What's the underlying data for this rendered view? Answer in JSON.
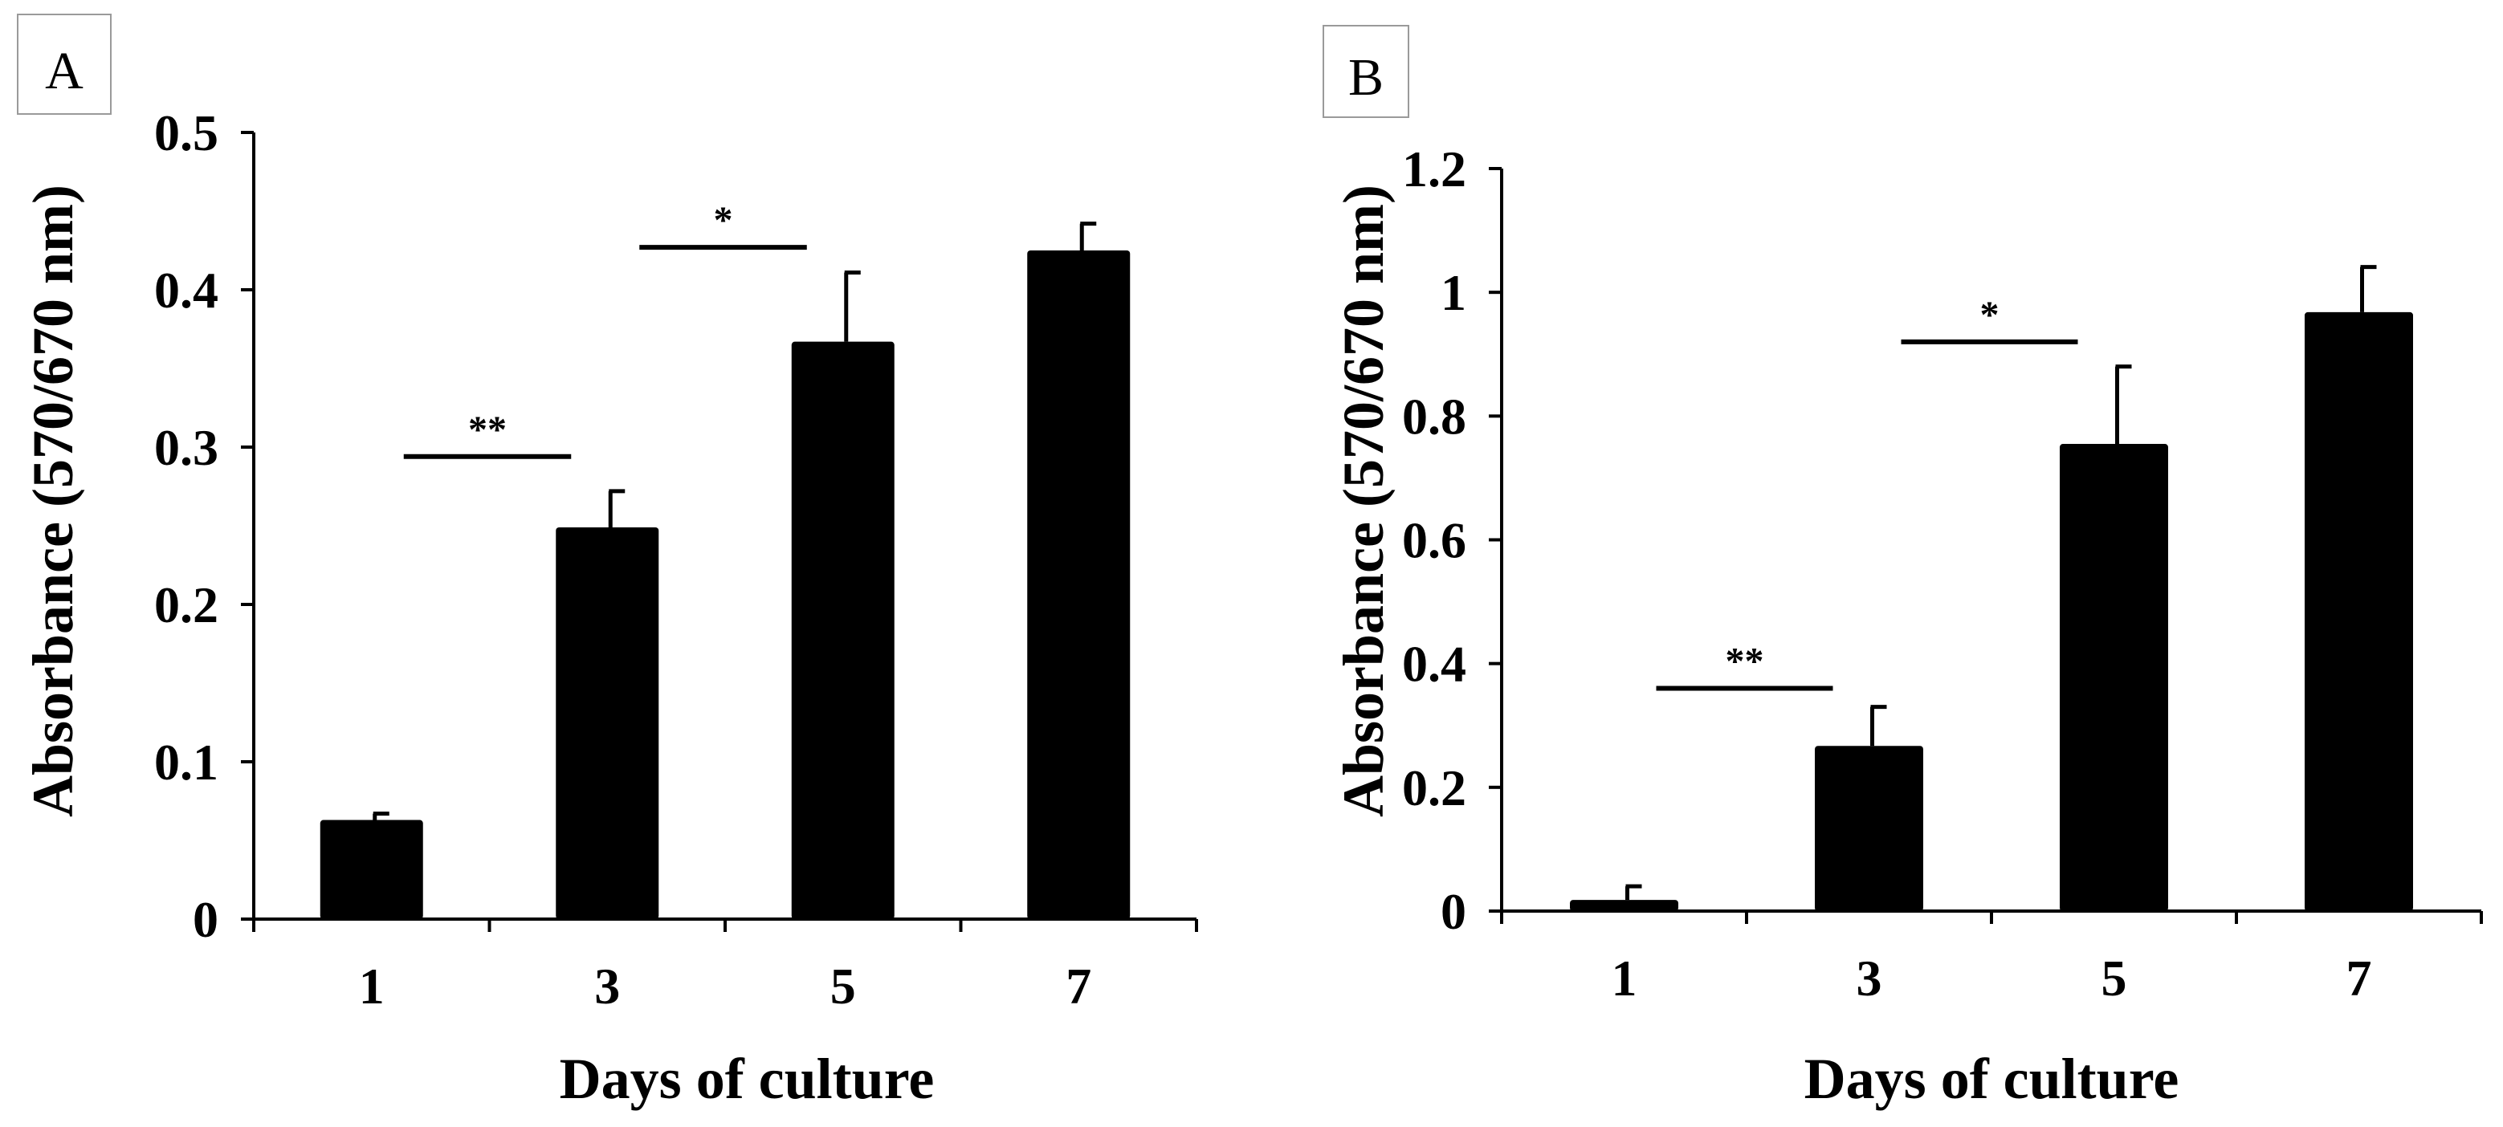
{
  "chart_data": [
    {
      "type": "bar",
      "panel_label": "A",
      "title": "",
      "categories": [
        "1",
        "3",
        "5",
        "7"
      ],
      "values": [
        0.063,
        0.249,
        0.367,
        0.425
      ],
      "errors": [
        0.004,
        0.023,
        0.044,
        0.017
      ],
      "xlabel": "Days of culture",
      "ylabel": "Absorbance (570/670 nm)",
      "ylim": [
        0,
        0.5
      ],
      "yticks": [
        "0",
        "0.1",
        "0.2",
        "0.3",
        "0.4",
        "0.5"
      ],
      "grid": false,
      "bar_color": "#000000",
      "significance": [
        {
          "from": "1",
          "to": "3",
          "label": "**",
          "y": 0.294
        },
        {
          "from": "3",
          "to": "5",
          "label": "*",
          "y": 0.427
        }
      ]
    },
    {
      "type": "bar",
      "panel_label": "B",
      "title": "",
      "categories": [
        "1",
        "3",
        "5",
        "7"
      ],
      "values": [
        0.018,
        0.267,
        0.755,
        0.968
      ],
      "errors": [
        0.022,
        0.063,
        0.125,
        0.073
      ],
      "xlabel": "Days of culture",
      "ylabel": "Absorbance (570/670 nm)",
      "ylim": [
        0,
        1.2
      ],
      "yticks": [
        "0",
        "0.2",
        "0.4",
        "0.6",
        "0.8",
        "1",
        "1.2"
      ],
      "grid": false,
      "bar_color": "#000000",
      "significance": [
        {
          "from": "1",
          "to": "3",
          "label": "**",
          "y": 0.36
        },
        {
          "from": "3",
          "to": "5",
          "label": "*",
          "y": 0.92
        }
      ]
    }
  ]
}
